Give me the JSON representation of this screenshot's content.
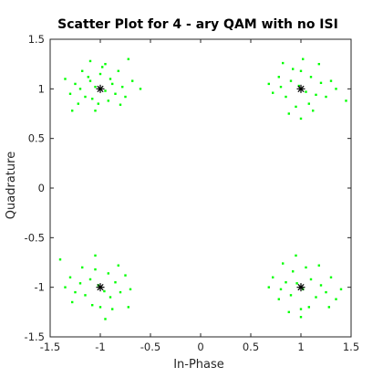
{
  "chart_data": {
    "type": "scatter",
    "title": "Scatter Plot for 4 - ary QAM with no ISI",
    "xlabel": "In-Phase",
    "ylabel": "Quadrature",
    "xlim": [
      -1.5,
      1.5
    ],
    "ylim": [
      -1.5,
      1.5
    ],
    "xticks": [
      -1.5,
      -1,
      -0.5,
      0,
      0.5,
      1,
      1.5
    ],
    "yticks": [
      -1.5,
      -1,
      -0.5,
      0,
      0.5,
      1,
      1.5
    ],
    "xtick_labels": [
      "-1.5",
      "-1",
      "-0.5",
      "0",
      "0.5",
      "1",
      "1.5"
    ],
    "ytick_labels": [
      "-1.5",
      "-1",
      "-0.5",
      "0",
      "0.5",
      "1",
      "1.5"
    ],
    "grid": false,
    "series": [
      {
        "marker": "dot",
        "color": "#00ff00",
        "points": [
          [
            -1.05,
            1.02
          ],
          [
            -0.95,
            0.98
          ],
          [
            -1.1,
            1.08
          ],
          [
            -0.9,
            1.1
          ],
          [
            -1.15,
            0.92
          ],
          [
            -1.2,
            1.0
          ],
          [
            -0.85,
            0.95
          ],
          [
            -1.0,
            1.15
          ],
          [
            -1.02,
            0.85
          ],
          [
            -0.92,
            0.88
          ],
          [
            -1.08,
            0.9
          ],
          [
            -1.12,
            1.12
          ],
          [
            -0.88,
            1.05
          ],
          [
            -0.98,
            1.22
          ],
          [
            -1.25,
            1.05
          ],
          [
            -0.78,
            1.02
          ],
          [
            -1.3,
            0.95
          ],
          [
            -0.75,
            0.92
          ],
          [
            -1.05,
            0.78
          ],
          [
            -0.95,
            1.25
          ],
          [
            -1.18,
            1.18
          ],
          [
            -0.82,
            1.18
          ],
          [
            -1.22,
            0.85
          ],
          [
            -0.8,
            0.84
          ],
          [
            -1.35,
            1.1
          ],
          [
            -0.68,
            1.08
          ],
          [
            -0.72,
            1.3
          ],
          [
            -1.28,
            0.78
          ],
          [
            -1.1,
            1.28
          ],
          [
            -0.6,
            1.0
          ],
          [
            0.98,
            1.03
          ],
          [
            1.05,
            0.97
          ],
          [
            0.9,
            1.08
          ],
          [
            1.1,
            1.12
          ],
          [
            0.85,
            0.92
          ],
          [
            1.15,
            0.94
          ],
          [
            1.0,
            1.18
          ],
          [
            0.95,
            0.82
          ],
          [
            1.08,
            0.85
          ],
          [
            0.92,
            1.2
          ],
          [
            1.2,
            1.06
          ],
          [
            0.8,
            1.02
          ],
          [
            1.25,
            0.92
          ],
          [
            0.78,
            1.12
          ],
          [
            1.02,
            1.3
          ],
          [
            1.12,
            0.78
          ],
          [
            0.88,
            0.75
          ],
          [
            1.3,
            1.08
          ],
          [
            0.72,
            0.96
          ],
          [
            1.18,
            1.25
          ],
          [
            0.82,
            1.26
          ],
          [
            1.35,
            1.0
          ],
          [
            0.68,
            1.05
          ],
          [
            1.0,
            0.7
          ],
          [
            1.45,
            0.88
          ],
          [
            -1.02,
            -0.98
          ],
          [
            -0.96,
            -1.04
          ],
          [
            -1.1,
            -0.92
          ],
          [
            -0.9,
            -1.1
          ],
          [
            -1.15,
            -1.08
          ],
          [
            -0.85,
            -0.95
          ],
          [
            -1.0,
            -1.2
          ],
          [
            -1.05,
            -0.82
          ],
          [
            -0.92,
            -0.86
          ],
          [
            -1.2,
            -0.96
          ],
          [
            -1.25,
            -1.05
          ],
          [
            -0.8,
            -1.05
          ],
          [
            -1.08,
            -1.18
          ],
          [
            -0.88,
            -1.22
          ],
          [
            -1.3,
            -0.9
          ],
          [
            -0.75,
            -0.88
          ],
          [
            -1.18,
            -0.8
          ],
          [
            -0.82,
            -0.78
          ],
          [
            -0.95,
            -1.32
          ],
          [
            -1.35,
            -1.0
          ],
          [
            -0.7,
            -1.02
          ],
          [
            -1.05,
            -0.68
          ],
          [
            -1.28,
            -1.15
          ],
          [
            -0.72,
            -1.2
          ],
          [
            -1.4,
            -0.72
          ],
          [
            1.02,
            -1.02
          ],
          [
            0.96,
            -0.96
          ],
          [
            1.1,
            -0.92
          ],
          [
            0.9,
            -1.08
          ],
          [
            1.15,
            -1.1
          ],
          [
            0.85,
            -0.95
          ],
          [
            1.0,
            -1.22
          ],
          [
            1.05,
            -0.8
          ],
          [
            0.92,
            -0.84
          ],
          [
            1.2,
            -0.98
          ],
          [
            0.8,
            -1.02
          ],
          [
            1.25,
            -1.05
          ],
          [
            0.78,
            -1.12
          ],
          [
            1.08,
            -1.2
          ],
          [
            0.88,
            -1.25
          ],
          [
            1.3,
            -0.9
          ],
          [
            0.72,
            -0.9
          ],
          [
            1.18,
            -0.78
          ],
          [
            0.82,
            -0.76
          ],
          [
            1.0,
            -1.3
          ],
          [
            0.68,
            -1.0
          ],
          [
            1.35,
            -1.12
          ],
          [
            0.95,
            -0.68
          ],
          [
            1.28,
            -1.2
          ],
          [
            1.4,
            -1.02
          ]
        ]
      },
      {
        "marker": "star",
        "color": "#000000",
        "points": [
          [
            -1,
            1
          ],
          [
            1,
            1
          ],
          [
            -1,
            -1
          ],
          [
            1,
            -1
          ]
        ]
      }
    ]
  }
}
